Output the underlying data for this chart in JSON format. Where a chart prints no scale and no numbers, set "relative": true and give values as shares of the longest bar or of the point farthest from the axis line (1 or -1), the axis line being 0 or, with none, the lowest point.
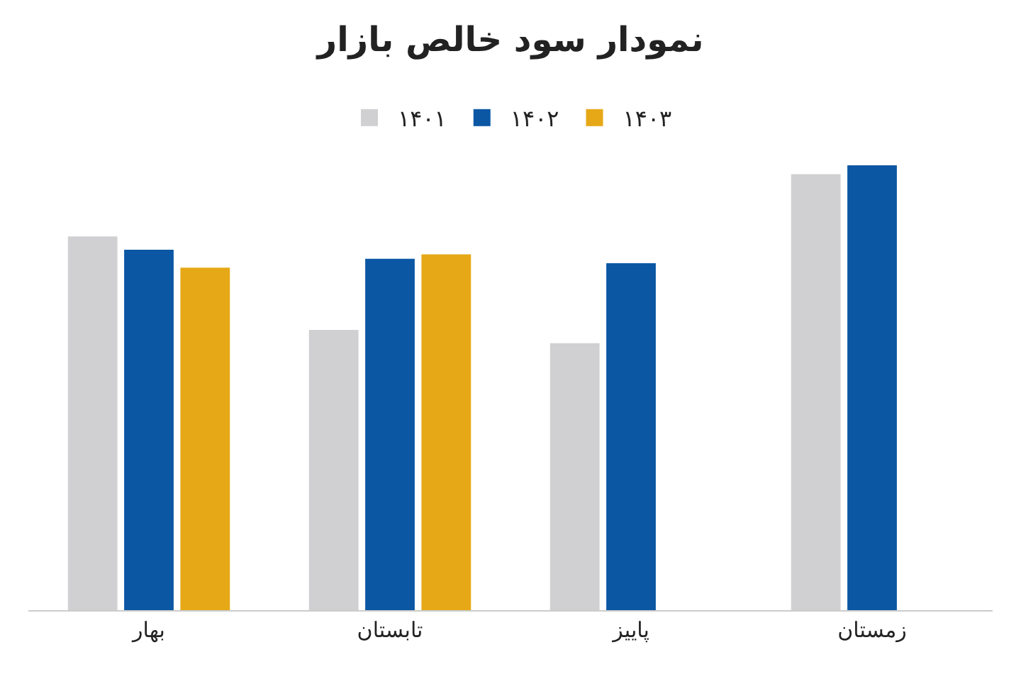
{
  "chart_data": {
    "type": "bar",
    "title": "نمودار سود خالص بازار",
    "relative": true,
    "legend": "top",
    "categories": [
      "بهار",
      "تابستان",
      "پاییز",
      "زمستان"
    ],
    "series": [
      {
        "name": "۱۴۰۱",
        "color": "#d0d0d2",
        "values": [
          0.84,
          0.63,
          0.6,
          0.98
        ]
      },
      {
        "name": "۱۴۰۲",
        "color": "#0b57a4",
        "values": [
          0.81,
          0.79,
          0.78,
          1
        ]
      },
      {
        "name": "۱۴۰۳",
        "color": "#e6a817",
        "values": [
          0.77,
          0.8,
          null,
          null
        ]
      }
    ]
  }
}
